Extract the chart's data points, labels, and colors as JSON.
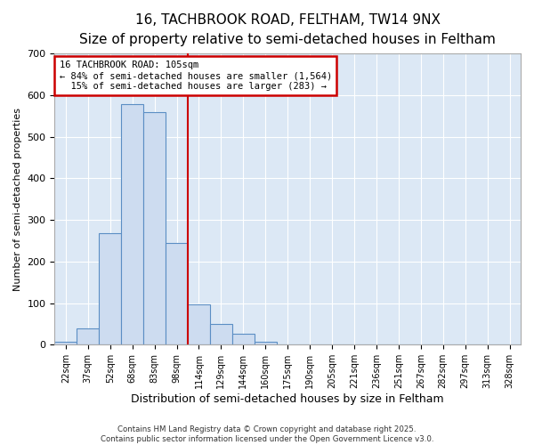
{
  "title1": "16, TACHBROOK ROAD, FELTHAM, TW14 9NX",
  "title2": "Size of property relative to semi-detached houses in Feltham",
  "xlabel": "Distribution of semi-detached houses by size in Feltham",
  "ylabel": "Number of semi-detached properties",
  "categories": [
    "22sqm",
    "37sqm",
    "52sqm",
    "68sqm",
    "83sqm",
    "98sqm",
    "114sqm",
    "129sqm",
    "144sqm",
    "160sqm",
    "175sqm",
    "190sqm",
    "205sqm",
    "221sqm",
    "236sqm",
    "251sqm",
    "267sqm",
    "282sqm",
    "297sqm",
    "313sqm",
    "328sqm"
  ],
  "values": [
    8,
    40,
    268,
    578,
    560,
    245,
    97,
    50,
    27,
    8,
    1,
    0,
    0,
    0,
    0,
    0,
    0,
    0,
    0,
    0,
    0
  ],
  "bar_color": "#cddcf0",
  "bar_edge_color": "#5b8ec4",
  "vline_index": 5.5,
  "vline_color": "#cc0000",
  "annotation_text": "16 TACHBROOK ROAD: 105sqm\n← 84% of semi-detached houses are smaller (1,564)\n  15% of semi-detached houses are larger (283) →",
  "annotation_box_color": "#cc0000",
  "ylim": [
    0,
    700
  ],
  "yticks": [
    0,
    100,
    200,
    300,
    400,
    500,
    600,
    700
  ],
  "footer_line1": "Contains HM Land Registry data © Crown copyright and database right 2025.",
  "footer_line2": "Contains public sector information licensed under the Open Government Licence v3.0.",
  "bg_color": "#ffffff",
  "plot_bg_color": "#dce8f5",
  "grid_color": "#ffffff",
  "title1_fontsize": 11,
  "title2_fontsize": 10,
  "ylabel_fontsize": 8,
  "xlabel_fontsize": 9
}
